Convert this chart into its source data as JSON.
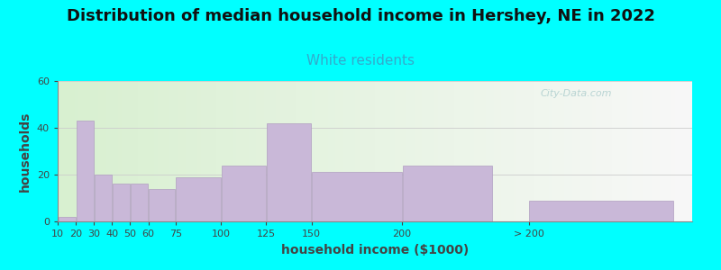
{
  "title": "Distribution of median household income in Hershey, NE in 2022",
  "subtitle": "White residents",
  "xlabel": "household income ($1000)",
  "ylabel": "households",
  "background_color": "#00FFFF",
  "plot_bg_gradient_left": "#d8f0d0",
  "plot_bg_gradient_right": "#f8f8f8",
  "bar_color": "#c9b8d8",
  "bar_edge_color": "#b09ec0",
  "categories": [
    "10",
    "20",
    "30",
    "40",
    "50",
    "60",
    "75",
    "100",
    "125",
    "150",
    "200",
    "> 200"
  ],
  "values": [
    2,
    43,
    20,
    16,
    16,
    14,
    19,
    24,
    42,
    21,
    24,
    9
  ],
  "bar_widths": [
    10,
    10,
    10,
    10,
    10,
    15,
    25,
    25,
    25,
    50,
    50,
    80
  ],
  "bar_lefts": [
    10,
    20,
    30,
    40,
    50,
    60,
    75,
    100,
    125,
    150,
    200,
    270
  ],
  "xlim": [
    10,
    360
  ],
  "ylim": [
    0,
    60
  ],
  "yticks": [
    0,
    20,
    40,
    60
  ],
  "title_fontsize": 13,
  "subtitle_fontsize": 11,
  "subtitle_color": "#33aacc",
  "axis_label_fontsize": 10,
  "tick_fontsize": 8,
  "watermark_text": "City-Data.com",
  "watermark_color": "#aacccc"
}
